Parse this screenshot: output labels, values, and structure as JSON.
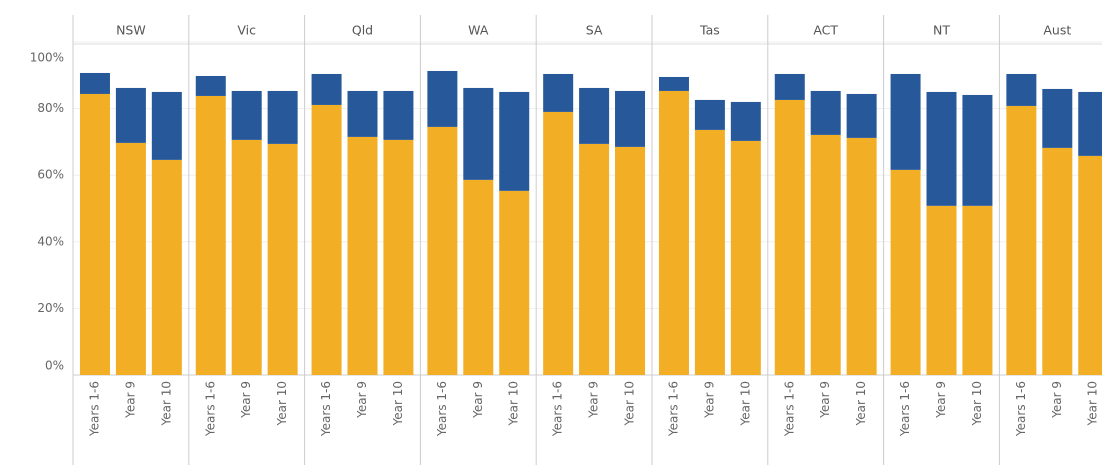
{
  "chart_data": {
    "type": "bar",
    "stacked": true,
    "facets": [
      "NSW",
      "Vic",
      "Qld",
      "WA",
      "SA",
      "Tas",
      "ACT",
      "NT",
      "Aust"
    ],
    "categories": [
      "Years 1-6",
      "Year 9",
      "Year 10"
    ],
    "series": [
      {
        "color": "#f2ae24",
        "values": [
          [
            84.4,
            69.7,
            64.6
          ],
          [
            83.8,
            70.6,
            69.4
          ],
          [
            81.1,
            71.5,
            70.6
          ],
          [
            74.5,
            58.6,
            55.3
          ],
          [
            79.0,
            69.4,
            68.5
          ],
          [
            85.3,
            73.6,
            70.3
          ],
          [
            82.6,
            72.1,
            71.2
          ],
          [
            61.6,
            50.8,
            50.8
          ],
          [
            80.8,
            68.2,
            65.8
          ]
        ]
      },
      {
        "color": "#27589a",
        "values": [
          [
            6.3,
            16.5,
            20.4
          ],
          [
            6.0,
            14.7,
            15.9
          ],
          [
            9.3,
            13.8,
            14.7
          ],
          [
            16.8,
            27.6,
            29.7
          ],
          [
            11.4,
            16.8,
            16.8
          ],
          [
            4.2,
            9.0,
            11.7
          ],
          [
            7.8,
            13.2,
            13.2
          ],
          [
            28.8,
            34.2,
            33.3
          ],
          [
            9.6,
            17.7,
            19.2
          ]
        ]
      }
    ],
    "ylim": [
      0,
      100
    ],
    "yticks": [
      {
        "value": 0,
        "label": "0%"
      },
      {
        "value": 20,
        "label": "20%"
      },
      {
        "value": 40,
        "label": "40%"
      },
      {
        "value": 60,
        "label": "60%"
      },
      {
        "value": 80,
        "label": "80%"
      },
      {
        "value": 100,
        "label": "100%"
      }
    ],
    "grid": true
  }
}
